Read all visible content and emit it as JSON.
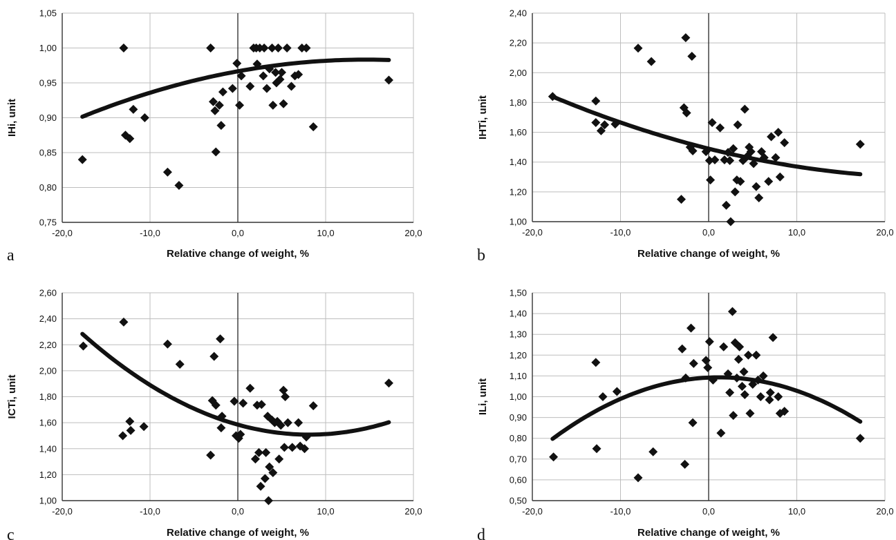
{
  "chart_data": [
    {
      "panel_label": "a",
      "type": "scatter",
      "xlabel": "Relative change of weight, %",
      "ylabel": "IHi, unit",
      "xlim": [
        -20,
        20
      ],
      "ylim": [
        0.75,
        1.05
      ],
      "xticks": [
        -20,
        -10,
        0,
        10,
        20
      ],
      "xtick_labels": [
        "-20,0",
        "-10,0",
        "0,0",
        "10,0",
        "20,0"
      ],
      "yticks": [
        0.75,
        0.8,
        0.85,
        0.9,
        0.95,
        1.0,
        1.05
      ],
      "ytick_labels": [
        "0,75",
        "0,80",
        "0,85",
        "0,90",
        "0,95",
        "1,00",
        "1,05"
      ],
      "grid": true,
      "points": [
        [
          -17.7,
          0.84
        ],
        [
          -13,
          1.0
        ],
        [
          -12.8,
          0.875
        ],
        [
          -12.3,
          0.87
        ],
        [
          -11.9,
          0.912
        ],
        [
          -10.6,
          0.9
        ],
        [
          -8,
          0.822
        ],
        [
          -6.7,
          0.803
        ],
        [
          -3.1,
          1.0
        ],
        [
          -2.8,
          0.923
        ],
        [
          -2.6,
          0.91
        ],
        [
          -2.5,
          0.851
        ],
        [
          -2.1,
          0.918
        ],
        [
          -1.9,
          0.889
        ],
        [
          -1.7,
          0.937
        ],
        [
          -0.6,
          0.942
        ],
        [
          -0.1,
          0.978
        ],
        [
          0.2,
          0.918
        ],
        [
          0.4,
          0.96
        ],
        [
          1.4,
          0.945
        ],
        [
          1.8,
          1.0
        ],
        [
          2.1,
          1.0
        ],
        [
          2.2,
          0.977
        ],
        [
          2.5,
          1.0
        ],
        [
          2.9,
          0.96
        ],
        [
          3.0,
          1.0
        ],
        [
          3.3,
          0.942
        ],
        [
          3.6,
          0.97
        ],
        [
          3.9,
          1.0
        ],
        [
          4.0,
          0.918
        ],
        [
          4.3,
          0.965
        ],
        [
          4.4,
          0.95
        ],
        [
          4.6,
          1.0
        ],
        [
          4.8,
          0.955
        ],
        [
          5.0,
          0.965
        ],
        [
          5.2,
          0.92
        ],
        [
          5.6,
          1.0
        ],
        [
          6.1,
          0.945
        ],
        [
          6.5,
          0.96
        ],
        [
          6.9,
          0.962
        ],
        [
          7.3,
          1.0
        ],
        [
          7.8,
          1.0
        ],
        [
          8.6,
          0.887
        ],
        [
          17.2,
          0.954
        ]
      ],
      "trend_coefficients": [
        0.9666,
        0.00229,
        -7.85e-05
      ],
      "trend_xrange": [
        -17.7,
        17.2
      ]
    },
    {
      "panel_label": "b",
      "type": "scatter",
      "xlabel": "Relative change of weight, %",
      "ylabel": "IHTi, unit",
      "xlim": [
        -20,
        20
      ],
      "ylim": [
        1.0,
        2.4
      ],
      "xticks": [
        -20,
        -10,
        0,
        10,
        20
      ],
      "xtick_labels": [
        "-20,0",
        "-10,0",
        "0,0",
        "10,0",
        "20,0"
      ],
      "yticks": [
        1.0,
        1.2,
        1.4,
        1.6,
        1.8,
        2.0,
        2.2,
        2.4
      ],
      "ytick_labels": [
        "1,00",
        "1,20",
        "1,40",
        "1,60",
        "1,80",
        "2,00",
        "2,20",
        "2,40"
      ],
      "grid": true,
      "points": [
        [
          -17.7,
          1.84
        ],
        [
          -12.8,
          1.81
        ],
        [
          -12.8,
          1.665
        ],
        [
          -12.2,
          1.61
        ],
        [
          -11.8,
          1.65
        ],
        [
          -10.6,
          1.655
        ],
        [
          -8,
          2.165
        ],
        [
          -6.5,
          2.075
        ],
        [
          -3.1,
          1.15
        ],
        [
          -2.8,
          1.765
        ],
        [
          -2.6,
          2.235
        ],
        [
          -2.5,
          1.73
        ],
        [
          -2.1,
          1.5
        ],
        [
          -1.9,
          2.11
        ],
        [
          -1.8,
          1.475
        ],
        [
          -0.3,
          1.47
        ],
        [
          0.1,
          1.41
        ],
        [
          0.2,
          1.28
        ],
        [
          0.4,
          1.665
        ],
        [
          0.7,
          1.415
        ],
        [
          1.3,
          1.63
        ],
        [
          1.8,
          1.415
        ],
        [
          2.0,
          1.11
        ],
        [
          2.2,
          1.465
        ],
        [
          2.4,
          1.41
        ],
        [
          2.5,
          1.0
        ],
        [
          2.8,
          1.49
        ],
        [
          3.0,
          1.2
        ],
        [
          3.2,
          1.28
        ],
        [
          3.3,
          1.65
        ],
        [
          3.6,
          1.27
        ],
        [
          3.9,
          1.41
        ],
        [
          4.1,
          1.755
        ],
        [
          4.4,
          1.44
        ],
        [
          4.6,
          1.5
        ],
        [
          4.8,
          1.47
        ],
        [
          5.1,
          1.39
        ],
        [
          5.4,
          1.235
        ],
        [
          5.7,
          1.16
        ],
        [
          6.0,
          1.47
        ],
        [
          6.3,
          1.43
        ],
        [
          6.8,
          1.27
        ],
        [
          7.1,
          1.57
        ],
        [
          7.6,
          1.43
        ],
        [
          7.9,
          1.6
        ],
        [
          8.1,
          1.3
        ],
        [
          8.6,
          1.53
        ],
        [
          17.2,
          1.52
        ]
      ],
      "trend_coefficients": [
        1.49,
        -0.0148,
        0.00028
      ],
      "trend_xrange": [
        -17.7,
        17.2
      ]
    },
    {
      "panel_label": "c",
      "type": "scatter",
      "xlabel": "Relative change of weight, %",
      "ylabel": "ICTi, unit",
      "xlim": [
        -20,
        20
      ],
      "ylim": [
        1.0,
        2.6
      ],
      "xticks": [
        -20,
        -10,
        0,
        10,
        20
      ],
      "xtick_labels": [
        "-20,0",
        "-10,0",
        "0,0",
        "10,0",
        "20,0"
      ],
      "yticks": [
        1.0,
        1.2,
        1.4,
        1.6,
        1.8,
        2.0,
        2.2,
        2.4,
        2.6
      ],
      "ytick_labels": [
        "1,00",
        "1,20",
        "1,40",
        "1,60",
        "1,80",
        "2,00",
        "2,20",
        "2,40",
        "2,60"
      ],
      "grid": true,
      "points": [
        [
          -17.6,
          2.19
        ],
        [
          -13,
          2.375
        ],
        [
          -13.1,
          1.5
        ],
        [
          -12.3,
          1.61
        ],
        [
          -12.2,
          1.54
        ],
        [
          -10.7,
          1.57
        ],
        [
          -8,
          2.205
        ],
        [
          -6.6,
          2.05
        ],
        [
          -3.1,
          1.35
        ],
        [
          -2.9,
          1.77
        ],
        [
          -2.7,
          2.11
        ],
        [
          -2.5,
          1.735
        ],
        [
          -2.0,
          2.245
        ],
        [
          -1.9,
          1.56
        ],
        [
          -1.8,
          1.65
        ],
        [
          -0.4,
          1.765
        ],
        [
          -0.2,
          1.5
        ],
        [
          0.1,
          1.48
        ],
        [
          0.3,
          1.51
        ],
        [
          0.6,
          1.75
        ],
        [
          1.4,
          1.865
        ],
        [
          2.0,
          1.32
        ],
        [
          2.2,
          1.735
        ],
        [
          2.4,
          1.37
        ],
        [
          2.6,
          1.11
        ],
        [
          2.7,
          1.74
        ],
        [
          3.1,
          1.17
        ],
        [
          3.2,
          1.37
        ],
        [
          3.4,
          1.65
        ],
        [
          3.5,
          1.0
        ],
        [
          3.6,
          1.26
        ],
        [
          3.9,
          1.62
        ],
        [
          4.0,
          1.215
        ],
        [
          4.2,
          1.6
        ],
        [
          4.5,
          1.61
        ],
        [
          4.7,
          1.32
        ],
        [
          4.9,
          1.58
        ],
        [
          5.2,
          1.85
        ],
        [
          5.3,
          1.41
        ],
        [
          5.4,
          1.8
        ],
        [
          5.7,
          1.6
        ],
        [
          6.2,
          1.41
        ],
        [
          6.9,
          1.6
        ],
        [
          7.1,
          1.42
        ],
        [
          7.6,
          1.4
        ],
        [
          7.8,
          1.49
        ],
        [
          8.6,
          1.73
        ],
        [
          17.2,
          1.905
        ]
      ],
      "trend_coefficients": [
        1.585,
        -0.0189,
        0.00116
      ],
      "trend_xrange": [
        -17.7,
        17.2
      ]
    },
    {
      "panel_label": "d",
      "type": "scatter",
      "xlabel": "Relative change of weight, %",
      "ylabel": "ILi, unit",
      "xlim": [
        -20,
        20
      ],
      "ylim": [
        0.5,
        1.5
      ],
      "xticks": [
        -20,
        -10,
        0,
        10,
        20
      ],
      "xtick_labels": [
        "-20,0",
        "-10,0",
        "0,0",
        "10,0",
        "20,0"
      ],
      "yticks": [
        0.5,
        0.6,
        0.7,
        0.8,
        0.9,
        1.0,
        1.1,
        1.2,
        1.3,
        1.4,
        1.5
      ],
      "ytick_labels": [
        "0,50",
        "0,60",
        "0,70",
        "0,80",
        "0,90",
        "1,00",
        "1,10",
        "1,20",
        "1,30",
        "1,40",
        "1,50"
      ],
      "grid": true,
      "points": [
        [
          -17.6,
          0.71
        ],
        [
          -12.8,
          1.165
        ],
        [
          -12.7,
          0.75
        ],
        [
          -12.0,
          1.0
        ],
        [
          -10.4,
          1.025
        ],
        [
          -8,
          0.61
        ],
        [
          -6.3,
          0.735
        ],
        [
          -3.0,
          1.23
        ],
        [
          -2.7,
          0.675
        ],
        [
          -2.6,
          1.09
        ],
        [
          -2.0,
          1.33
        ],
        [
          -1.8,
          0.875
        ],
        [
          -1.7,
          1.16
        ],
        [
          -0.3,
          1.175
        ],
        [
          -0.1,
          1.14
        ],
        [
          0.1,
          1.265
        ],
        [
          0.5,
          1.08
        ],
        [
          1.4,
          0.825
        ],
        [
          1.7,
          1.24
        ],
        [
          2.2,
          1.11
        ],
        [
          2.4,
          1.02
        ],
        [
          2.7,
          1.41
        ],
        [
          2.8,
          0.91
        ],
        [
          3.0,
          1.26
        ],
        [
          3.2,
          1.09
        ],
        [
          3.4,
          1.18
        ],
        [
          3.5,
          1.24
        ],
        [
          3.8,
          1.05
        ],
        [
          4.0,
          1.12
        ],
        [
          4.1,
          1.01
        ],
        [
          4.5,
          1.2
        ],
        [
          4.7,
          0.92
        ],
        [
          5.0,
          1.06
        ],
        [
          5.4,
          1.2
        ],
        [
          5.6,
          1.08
        ],
        [
          5.9,
          1.0
        ],
        [
          6.2,
          1.1
        ],
        [
          6.9,
          0.985
        ],
        [
          7.0,
          1.02
        ],
        [
          7.3,
          1.285
        ],
        [
          7.9,
          1.0
        ],
        [
          8.1,
          0.92
        ],
        [
          8.6,
          0.93
        ],
        [
          17.2,
          0.8
        ]
      ],
      "trend_coefficients": [
        1.092,
        0.00195,
        -0.00083
      ],
      "trend_xrange": [
        -17.7,
        17.2
      ]
    }
  ]
}
